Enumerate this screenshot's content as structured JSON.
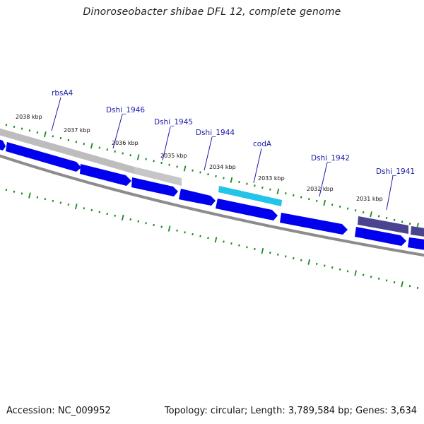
{
  "title": "Dinoroseobacter shibae DFL 12, complete genome",
  "footer": {
    "accession": "Accession: NC_009952",
    "summary": "Topology: circular; Length: 3,789,584 bp; Genes: 3,634"
  },
  "colors": {
    "forward_cds": "#0000ee",
    "reverse_gray": "#bdbdbd",
    "reverse_cyan": "#22c4e8",
    "reverse_purple": "#4a4490",
    "backbone": "#8c8c8c",
    "ticks": "#1a8a1a",
    "label": "#1a1aa8"
  },
  "kbp_labels": [
    "2038 kbp",
    "2037 kbp",
    "2036 kbp",
    "2035 kbp",
    "2034 kbp",
    "2033 kbp",
    "2032 kbp",
    "2031 kbp"
  ],
  "gene_labels": [
    "rbsA4",
    "Dshi_1946",
    "Dshi_1945",
    "Dshi_1944",
    "codA",
    "Dshi_1942",
    "Dshi_1941"
  ]
}
